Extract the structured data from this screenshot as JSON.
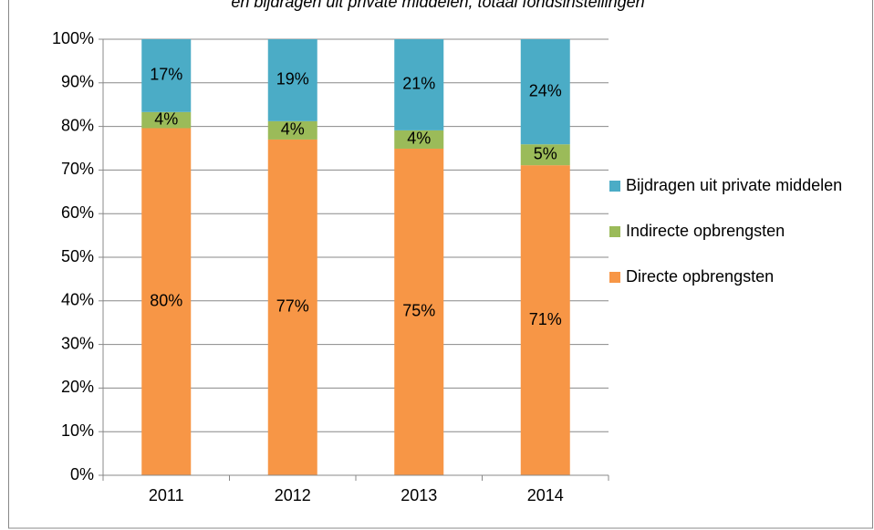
{
  "chart_data": {
    "type": "stacked_bar",
    "title": "en bijdragen uit private middelen, totaal fondsinstellingen",
    "categories": [
      "2011",
      "2012",
      "2013",
      "2014"
    ],
    "series": [
      {
        "name": "Directe opbrengsten",
        "color": "#f79646",
        "values": [
          79.6,
          77.0,
          74.9,
          71.1
        ],
        "value_labels": [
          "80%",
          "77%",
          "75%",
          "71%"
        ]
      },
      {
        "name": "Indirecte opbrengsten",
        "color": "#9bbb59",
        "values": [
          3.7,
          4.2,
          4.2,
          4.8
        ],
        "value_labels": [
          "4%",
          "4%",
          "4%",
          "5%"
        ]
      },
      {
        "name": "Bijdragen uit private middelen",
        "color": "#4bacc6",
        "values": [
          16.7,
          18.8,
          20.9,
          24.1
        ],
        "value_labels": [
          "17%",
          "19%",
          "21%",
          "24%"
        ]
      }
    ],
    "ylim": [
      0,
      100
    ],
    "yticks": [
      {
        "value": 0,
        "label": "0%"
      },
      {
        "value": 10,
        "label": "10%"
      },
      {
        "value": 20,
        "label": "20%"
      },
      {
        "value": 30,
        "label": "30%"
      },
      {
        "value": 40,
        "label": "40%"
      },
      {
        "value": 50,
        "label": "50%"
      },
      {
        "value": 60,
        "label": "60%"
      },
      {
        "value": 70,
        "label": "70%"
      },
      {
        "value": 80,
        "label": "80%"
      },
      {
        "value": 90,
        "label": "90%"
      },
      {
        "value": 100,
        "label": "100%"
      }
    ],
    "grid": true,
    "legend": "right"
  }
}
